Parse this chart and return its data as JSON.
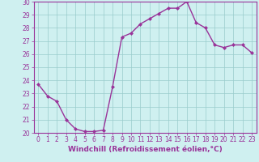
{
  "x": [
    0,
    1,
    2,
    3,
    4,
    5,
    6,
    7,
    8,
    9,
    10,
    11,
    12,
    13,
    14,
    15,
    16,
    17,
    18,
    19,
    20,
    21,
    22,
    23
  ],
  "y": [
    23.7,
    22.8,
    22.4,
    21.0,
    20.3,
    20.1,
    20.1,
    20.2,
    23.5,
    27.3,
    27.6,
    28.3,
    28.7,
    29.1,
    29.5,
    29.5,
    30.0,
    28.4,
    28.0,
    26.7,
    26.5,
    26.7,
    26.7,
    26.1
  ],
  "line_color": "#993399",
  "marker": "D",
  "marker_size": 2,
  "bg_color": "#cff0f0",
  "grid_color": "#99cccc",
  "xlabel": "Windchill (Refroidissement éolien,°C)",
  "ylim": [
    20,
    30
  ],
  "yticks": [
    20,
    21,
    22,
    23,
    24,
    25,
    26,
    27,
    28,
    29,
    30
  ],
  "xticks": [
    0,
    1,
    2,
    3,
    4,
    5,
    6,
    7,
    8,
    9,
    10,
    11,
    12,
    13,
    14,
    15,
    16,
    17,
    18,
    19,
    20,
    21,
    22,
    23
  ],
  "xlabel_fontsize": 6.5,
  "tick_fontsize": 5.5,
  "line_width": 1.0,
  "axis_color": "#993399"
}
